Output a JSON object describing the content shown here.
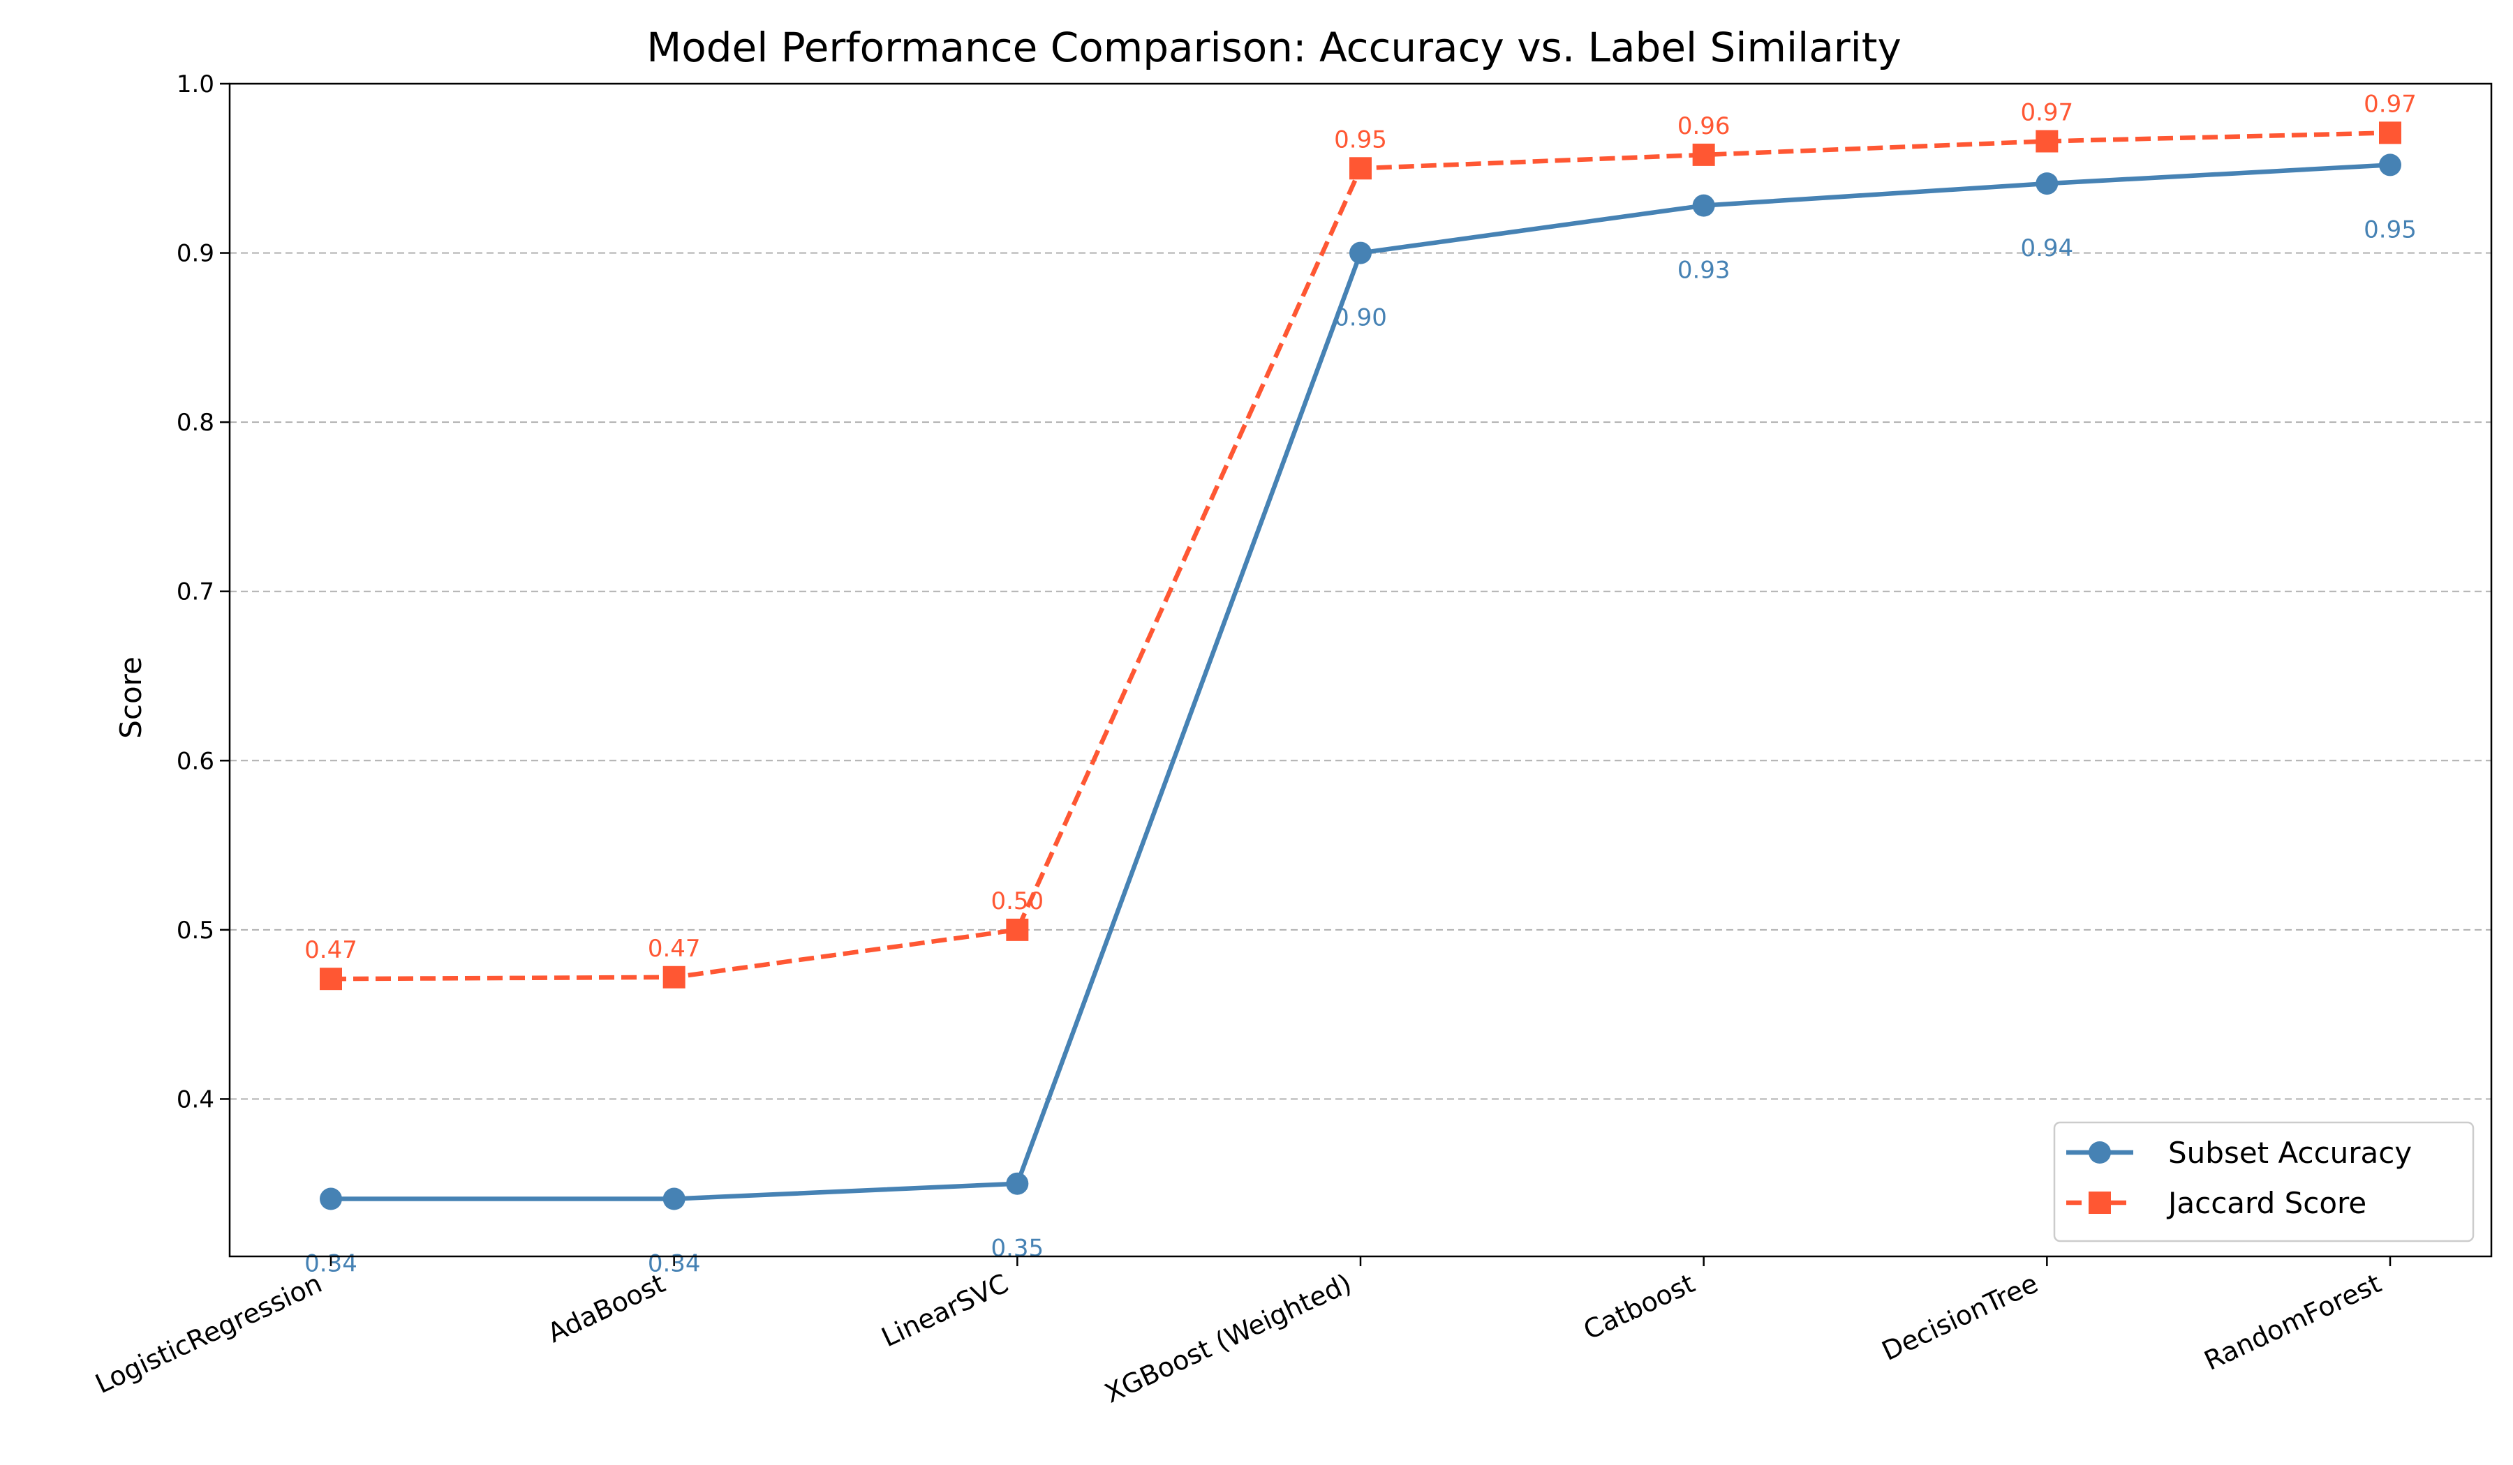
{
  "chart_data": {
    "type": "line",
    "title": "Model Performance Comparison: Accuracy vs. Label Similarity",
    "xlabel": "",
    "ylabel": "Score",
    "categories": [
      "LogisticRegression",
      "AdaBoost",
      "LinearSVC",
      "XGBoost (Weighted)",
      "Catboost",
      "DecisionTree",
      "RandomForest"
    ],
    "series": [
      {
        "name": "Subset Accuracy",
        "values": [
          0.341,
          0.341,
          0.35,
          0.9,
          0.928,
          0.941,
          0.952
        ],
        "labels": [
          "0.34",
          "0.34",
          "0.35",
          "0.90",
          "0.93",
          "0.94",
          "0.95"
        ],
        "color": "#4682B4",
        "marker": "circle",
        "line_style": "solid"
      },
      {
        "name": "Jaccard Score",
        "values": [
          0.471,
          0.472,
          0.5,
          0.95,
          0.958,
          0.966,
          0.971
        ],
        "labels": [
          "0.47",
          "0.47",
          "0.50",
          "0.95",
          "0.96",
          "0.97",
          "0.97"
        ],
        "color": "#FF5733",
        "marker": "square",
        "line_style": "dashed"
      }
    ],
    "yticks": [
      "0.4",
      "0.5",
      "0.6",
      "0.7",
      "0.8",
      "0.9",
      "1.0"
    ],
    "ylim": [
      0.307,
      1.0
    ],
    "grid": "y-dashed",
    "legend_position": "lower-right"
  }
}
